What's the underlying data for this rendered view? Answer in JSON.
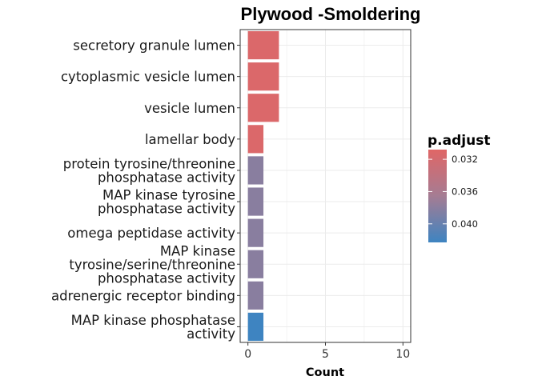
{
  "chart_data": {
    "type": "bar",
    "orientation": "horizontal",
    "title": "Plywood -Smoldering",
    "xlabel": "Count",
    "ylabel": "",
    "xlim": [
      -0.5,
      10.5
    ],
    "xticks": [
      0,
      5,
      10
    ],
    "grid": true,
    "categories": [
      "secretory granule lumen",
      "cytoplasmic vesicle lumen",
      "vesicle lumen",
      "lamellar body",
      "protein tyrosine/threonine phosphatase activity",
      "MAP kinase tyrosine phosphatase activity",
      "omega peptidase activity",
      "MAP kinase tyrosine/serine/threonine phosphatase activity",
      "adrenergic receptor binding",
      "MAP kinase phosphatase activity"
    ],
    "category_label_lines": [
      [
        "secretory granule lumen"
      ],
      [
        "cytoplasmic vesicle lumen"
      ],
      [
        "vesicle lumen"
      ],
      [
        "lamellar body"
      ],
      [
        "protein tyrosine/threonine",
        "phosphatase activity"
      ],
      [
        "MAP kinase tyrosine",
        "phosphatase activity"
      ],
      [
        "omega peptidase activity"
      ],
      [
        "MAP kinase",
        "tyrosine/serine/threonine",
        "phosphatase activity"
      ],
      [
        "adrenergic receptor binding"
      ],
      [
        "MAP kinase phosphatase",
        "activity"
      ]
    ],
    "values": [
      2,
      2,
      2,
      1,
      1,
      1,
      1,
      1,
      1,
      1
    ],
    "p_adjust": [
      0.0313,
      0.0313,
      0.0313,
      0.0313,
      0.0381,
      0.0381,
      0.0381,
      0.0381,
      0.0381,
      0.0423
    ],
    "legend": {
      "title": "p.adjust",
      "position": "right",
      "ticks": [
        0.032,
        0.036,
        0.04
      ],
      "tick_labels": [
        "0.032",
        "0.036",
        "0.040"
      ],
      "range": [
        0.0308,
        0.0423
      ],
      "low_color": "#e06666",
      "high_color": "#3e84c1"
    }
  }
}
